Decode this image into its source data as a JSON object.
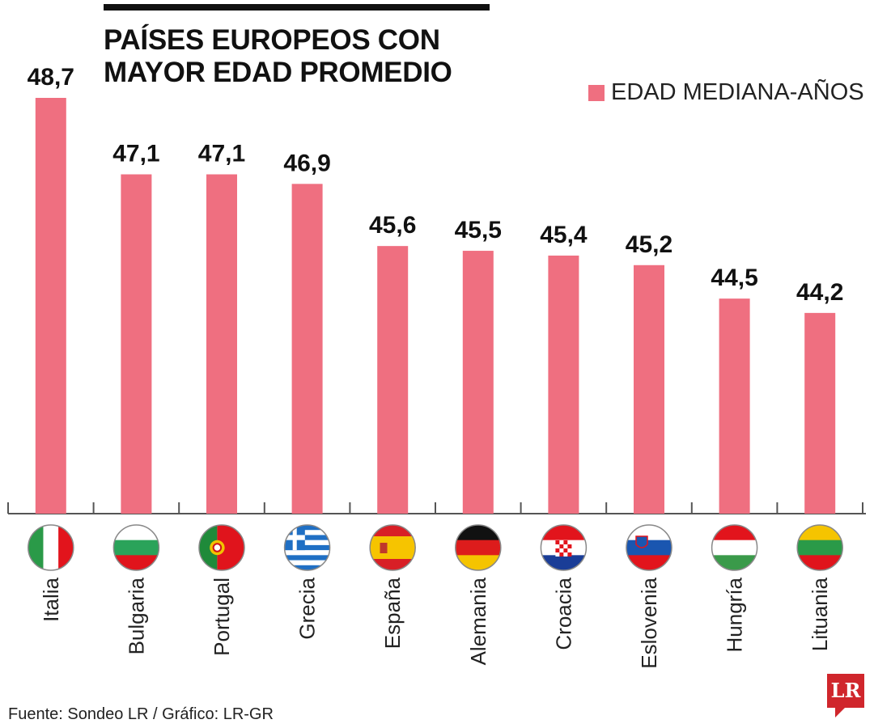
{
  "title_line1": "PAÍSES EUROPEOS CON",
  "title_line2": "MAYOR EDAD PROMEDIO",
  "source": "Fuente: Sondeo LR / Gráfico: LR-GR",
  "logo_text": "LR",
  "colors": {
    "bar": "#ef6f80",
    "axis": "#555555",
    "logo": "#d0262c"
  },
  "chart_data": {
    "type": "bar",
    "categories": [
      "Italia",
      "Bulgaria",
      "Portugal",
      "Grecia",
      "España",
      "Alemania",
      "Croacia",
      "Eslovenia",
      "Hungría",
      "Lituania"
    ],
    "series": [
      {
        "name": "EDAD MEDIANA-AÑOS",
        "values": [
          48.7,
          47.1,
          47.1,
          46.9,
          45.6,
          45.5,
          45.4,
          45.2,
          44.5,
          44.2
        ]
      }
    ],
    "data_labels": [
      "48,7",
      "47,1",
      "47,1",
      "46,9",
      "45,6",
      "45,5",
      "45,4",
      "45,2",
      "44,5",
      "44,2"
    ],
    "flags": [
      "italy",
      "bulgaria",
      "portugal",
      "greece",
      "spain",
      "germany",
      "croatia",
      "slovenia",
      "hungary",
      "lithuania"
    ],
    "ylim": [
      40,
      49
    ],
    "grid": false,
    "legend": "top-right",
    "xlabel": "",
    "ylabel": ""
  }
}
